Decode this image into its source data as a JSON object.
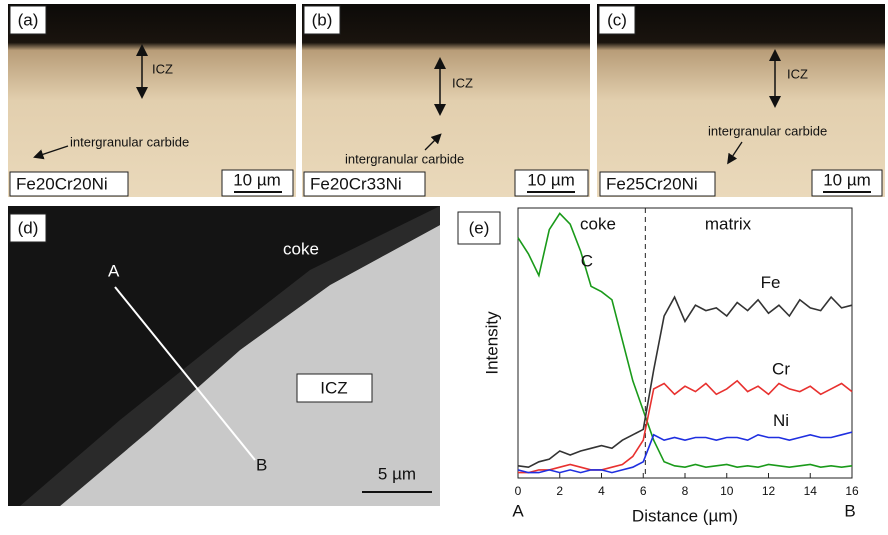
{
  "panels": [
    {
      "label": "(a)",
      "zone": "ICZ",
      "feature": "intergranular carbide",
      "sample": "Fe20Cr20Ni",
      "scale": "10 µm"
    },
    {
      "label": "(b)",
      "zone": "ICZ",
      "feature": "intergranular carbide",
      "sample": "Fe20Cr33Ni",
      "scale": "10 µm"
    },
    {
      "label": "(c)",
      "zone": "ICZ",
      "feature": "intergranular carbide",
      "sample": "Fe25Cr20Ni",
      "scale": "10 µm"
    },
    {
      "label": "(d)",
      "zone": "ICZ",
      "layer": "coke",
      "start": "A",
      "end": "B",
      "scale": "5 µm"
    }
  ],
  "chart_data": {
    "type": "line",
    "label": "(e)",
    "x": [
      0,
      0.5,
      1,
      1.5,
      2,
      2.5,
      3,
      3.5,
      4,
      4.5,
      5,
      5.5,
      6,
      6.5,
      7,
      7.5,
      8,
      8.5,
      9,
      9.5,
      10,
      10.5,
      11,
      11.5,
      12,
      12.5,
      13,
      13.5,
      14,
      14.5,
      15,
      15.5,
      16
    ],
    "series": [
      {
        "name": "C",
        "color": "#1a9a1a",
        "values": [
          89,
          83,
          75,
          92,
          98,
          94,
          84,
          71,
          69,
          66,
          51,
          36,
          25,
          14,
          6,
          4.5,
          4,
          5,
          4,
          4.5,
          5,
          4,
          4.5,
          4,
          5,
          4.5,
          4,
          4.5,
          5,
          4,
          4.5,
          4,
          4.5
        ]
      },
      {
        "name": "Fe",
        "color": "#333333",
        "values": [
          4.5,
          4,
          6,
          7,
          10,
          8.5,
          10,
          11,
          12,
          11,
          14,
          16,
          18,
          40,
          60,
          67,
          58,
          64,
          62,
          63,
          60,
          65,
          62,
          66,
          61,
          64,
          60,
          66,
          63,
          62,
          67,
          63,
          64
        ]
      },
      {
        "name": "Cr",
        "color": "#e8312f",
        "values": [
          2,
          2,
          3,
          3,
          4,
          5,
          4,
          3,
          3,
          4,
          5,
          8,
          14,
          33,
          35,
          31,
          34,
          32,
          35,
          31,
          33,
          36,
          32,
          34,
          31,
          35,
          33,
          32,
          34,
          31,
          33,
          35,
          32
        ]
      },
      {
        "name": "Ni",
        "color": "#1f2fe0",
        "values": [
          3,
          2,
          2,
          3,
          2,
          3,
          2,
          3,
          3,
          2,
          3,
          4,
          6,
          16,
          14,
          15,
          14,
          15,
          15,
          14,
          15,
          15,
          14,
          16,
          15,
          15,
          14,
          15,
          16,
          15,
          15,
          16,
          17
        ]
      }
    ],
    "xlim": [
      0,
      16
    ],
    "xticks": [
      0,
      2,
      4,
      6,
      8,
      10,
      12,
      14,
      16
    ],
    "ylim": [
      0,
      100
    ],
    "xlabel": "Distance (µm)",
    "ylabel": "Intensity",
    "annotations": [
      "coke",
      "matrix"
    ],
    "start": "A",
    "end": "B",
    "boundary": 6.1
  }
}
